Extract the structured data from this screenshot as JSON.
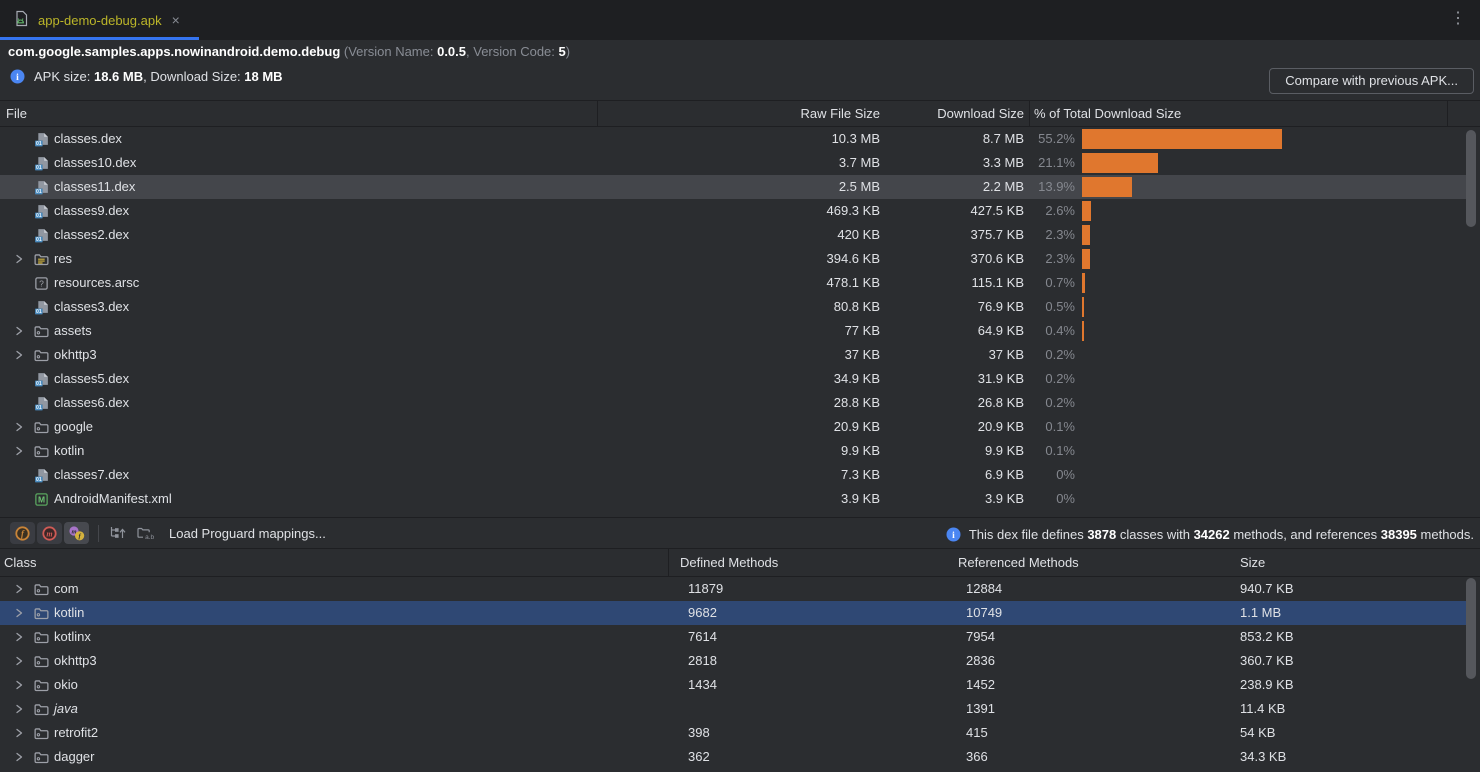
{
  "tab": {
    "title": "app-demo-debug.apk",
    "icon": "apk-file-icon",
    "close_icon": "×",
    "window_menu_icon": "⋮"
  },
  "header": {
    "package_name": "com.google.samples.apps.nowinandroid.demo.debug",
    "version_open": "(Version Name: ",
    "version_name": "0.0.5",
    "version_sep": ", Version Code: ",
    "version_code": "5",
    "version_close": ")",
    "info_icon": "info-icon",
    "apk_size_label": "APK size: ",
    "apk_size_value": "18.6 MB",
    "download_size_label": ", Download Size: ",
    "download_size_value": "18 MB",
    "compare_button_label": "Compare with previous APK..."
  },
  "file_table": {
    "columns": {
      "file": "File",
      "raw": "Raw File Size",
      "download": "Download Size",
      "percent": "% of Total Download Size"
    },
    "accent_color": "#e0772e",
    "rows": [
      {
        "name": "classes.dex",
        "icon": "dex-file-icon",
        "expandable": false,
        "selected": false,
        "raw": "10.3 MB",
        "download": "8.7 MB",
        "percent_label": "55.2%",
        "percent": 55.2
      },
      {
        "name": "classes10.dex",
        "icon": "dex-file-icon",
        "expandable": false,
        "selected": false,
        "raw": "3.7 MB",
        "download": "3.3 MB",
        "percent_label": "21.1%",
        "percent": 21.1
      },
      {
        "name": "classes11.dex",
        "icon": "dex-file-icon",
        "expandable": false,
        "selected": true,
        "raw": "2.5 MB",
        "download": "2.2 MB",
        "percent_label": "13.9%",
        "percent": 13.9
      },
      {
        "name": "classes9.dex",
        "icon": "dex-file-icon",
        "expandable": false,
        "selected": false,
        "raw": "469.3 KB",
        "download": "427.5 KB",
        "percent_label": "2.6%",
        "percent": 2.6
      },
      {
        "name": "classes2.dex",
        "icon": "dex-file-icon",
        "expandable": false,
        "selected": false,
        "raw": "420 KB",
        "download": "375.7 KB",
        "percent_label": "2.3%",
        "percent": 2.3
      },
      {
        "name": "res",
        "icon": "res-folder-icon",
        "expandable": true,
        "selected": false,
        "raw": "394.6 KB",
        "download": "370.6 KB",
        "percent_label": "2.3%",
        "percent": 2.3
      },
      {
        "name": "resources.arsc",
        "icon": "arsc-file-icon",
        "expandable": false,
        "selected": false,
        "raw": "478.1 KB",
        "download": "115.1 KB",
        "percent_label": "0.7%",
        "percent": 0.7
      },
      {
        "name": "classes3.dex",
        "icon": "dex-file-icon",
        "expandable": false,
        "selected": false,
        "raw": "80.8 KB",
        "download": "76.9 KB",
        "percent_label": "0.5%",
        "percent": 0.5
      },
      {
        "name": "assets",
        "icon": "folder-icon",
        "expandable": true,
        "selected": false,
        "raw": "77 KB",
        "download": "64.9 KB",
        "percent_label": "0.4%",
        "percent": 0.4
      },
      {
        "name": "okhttp3",
        "icon": "folder-icon",
        "expandable": true,
        "selected": false,
        "raw": "37 KB",
        "download": "37 KB",
        "percent_label": "0.2%",
        "percent": 0.2
      },
      {
        "name": "classes5.dex",
        "icon": "dex-file-icon",
        "expandable": false,
        "selected": false,
        "raw": "34.9 KB",
        "download": "31.9 KB",
        "percent_label": "0.2%",
        "percent": 0.2
      },
      {
        "name": "classes6.dex",
        "icon": "dex-file-icon",
        "expandable": false,
        "selected": false,
        "raw": "28.8 KB",
        "download": "26.8 KB",
        "percent_label": "0.2%",
        "percent": 0.2
      },
      {
        "name": "google",
        "icon": "folder-icon",
        "expandable": true,
        "selected": false,
        "raw": "20.9 KB",
        "download": "20.9 KB",
        "percent_label": "0.1%",
        "percent": 0.1
      },
      {
        "name": "kotlin",
        "icon": "folder-icon",
        "expandable": true,
        "selected": false,
        "raw": "9.9 KB",
        "download": "9.9 KB",
        "percent_label": "0.1%",
        "percent": 0.1
      },
      {
        "name": "classes7.dex",
        "icon": "dex-file-icon",
        "expandable": false,
        "selected": false,
        "raw": "7.3 KB",
        "download": "6.9 KB",
        "percent_label": "0%",
        "percent": 0
      },
      {
        "name": "AndroidManifest.xml",
        "icon": "manifest-file-icon",
        "expandable": false,
        "selected": false,
        "raw": "3.9 KB",
        "download": "3.9 KB",
        "percent_label": "0%",
        "percent": 0
      }
    ]
  },
  "dex_toolbar": {
    "filter_buttons": [
      {
        "icon": "fields-filter-icon",
        "highlighted": false
      },
      {
        "icon": "methods-filter-icon",
        "highlighted": false
      },
      {
        "icon": "all-classes-filter-icon",
        "highlighted": true
      }
    ],
    "tool_icons": [
      "expand-tree-icon",
      "flatten-packages-icon"
    ],
    "load_mappings_label": "Load Proguard mappings...",
    "info_icon": "info-icon",
    "info": {
      "part1": "This dex file defines ",
      "classes_count": "3878",
      "part2": " classes with ",
      "methods_count": "34262",
      "part3": " methods, and references ",
      "referenced_count": "38395",
      "part4": " methods."
    }
  },
  "class_table": {
    "columns": {
      "class": "Class",
      "defined": "Defined Methods",
      "referenced": "Referenced Methods",
      "size": "Size"
    },
    "rows": [
      {
        "name": "com",
        "icon": "folder-icon",
        "defined": "11879",
        "referenced": "12884",
        "size": "940.7 KB",
        "selected": false,
        "italic": false
      },
      {
        "name": "kotlin",
        "icon": "folder-icon",
        "defined": "9682",
        "referenced": "10749",
        "size": "1.1 MB",
        "selected": true,
        "italic": false
      },
      {
        "name": "kotlinx",
        "icon": "folder-icon",
        "defined": "7614",
        "referenced": "7954",
        "size": "853.2 KB",
        "selected": false,
        "italic": false
      },
      {
        "name": "okhttp3",
        "icon": "folder-icon",
        "defined": "2818",
        "referenced": "2836",
        "size": "360.7 KB",
        "selected": false,
        "italic": false
      },
      {
        "name": "okio",
        "icon": "folder-icon",
        "defined": "1434",
        "referenced": "1452",
        "size": "238.9 KB",
        "selected": false,
        "italic": false
      },
      {
        "name": "java",
        "icon": "folder-icon",
        "defined": "",
        "referenced": "1391",
        "size": "11.4 KB",
        "selected": false,
        "italic": true
      },
      {
        "name": "retrofit2",
        "icon": "folder-icon",
        "defined": "398",
        "referenced": "415",
        "size": "54 KB",
        "selected": false,
        "italic": false
      },
      {
        "name": "dagger",
        "icon": "folder-icon",
        "defined": "362",
        "referenced": "366",
        "size": "34.3 KB",
        "selected": false,
        "italic": false
      }
    ]
  }
}
